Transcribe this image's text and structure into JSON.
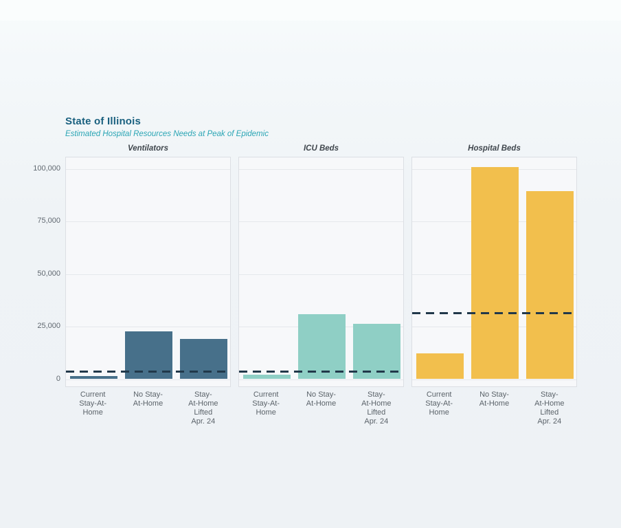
{
  "header": {
    "title": "State of Illinois",
    "subtitle": "Estimated Hospital Resources Needs at Peak of Epidemic"
  },
  "chart_data": {
    "type": "bar",
    "title": "State of Illinois",
    "subtitle": "Estimated Hospital Resources Needs at Peak of Epidemic",
    "facet_layout": "three horizontal panels sharing one y-axis, capacity shown as dashed horizontal line",
    "y_axis": {
      "ticks": [
        0,
        25000,
        50000,
        75000,
        100000
      ],
      "tick_labels": [
        "0",
        "25,000",
        "50,000",
        "75,000",
        "100,000"
      ],
      "range": [
        0,
        105000
      ],
      "grid": true
    },
    "scenarios": [
      "Current\nStay-At-\nHome",
      "No Stay-\nAt-Home",
      "Stay-\nAt-Home\nLifted\nApr. 24"
    ],
    "panels": [
      {
        "title": "Ventilators",
        "bar_color": "#47708a",
        "values": [
          1500,
          22800,
          19200
        ],
        "capacity_line": 3800
      },
      {
        "title": "ICU Beds",
        "bar_color": "#8fcfc5",
        "values": [
          2100,
          30800,
          26400
        ],
        "capacity_line": 3800
      },
      {
        "title": "Hospital Beds",
        "bar_color": "#f2bf4d",
        "values": [
          12200,
          100700,
          89300
        ],
        "capacity_line": 31500
      }
    ],
    "capacity_line_color": "#21384a",
    "colors": {
      "title": "#1a607f",
      "subtitle": "#2aa5b4",
      "panel_background": "#f7f8fa",
      "gridline": "#e5e8ec",
      "axis_text": "#606870"
    }
  }
}
